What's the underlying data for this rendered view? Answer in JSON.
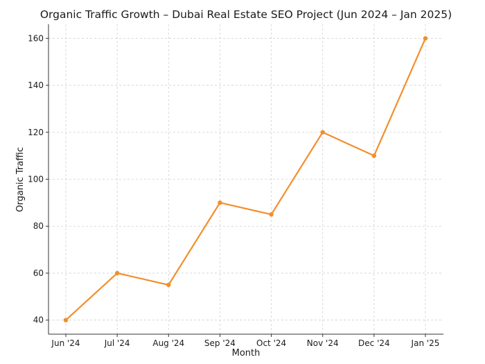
{
  "chart_data": {
    "type": "line",
    "title": "Organic Traffic Growth – Dubai Real Estate SEO Project (Jun 2024 – Jan 2025)",
    "xlabel": "Month",
    "ylabel": "Organic Traffic",
    "categories": [
      "Jun '24",
      "Jul '24",
      "Aug '24",
      "Sep '24",
      "Oct '24",
      "Nov '24",
      "Dec '24",
      "Jan '25"
    ],
    "series": [
      {
        "values": [
          40,
          60,
          55,
          90,
          85,
          120,
          110,
          160
        ]
      }
    ],
    "ylim": [
      34,
      166
    ],
    "yticks": [
      40,
      60,
      80,
      100,
      120,
      140,
      160
    ],
    "grid": true,
    "line_color": "#f28e2b"
  }
}
